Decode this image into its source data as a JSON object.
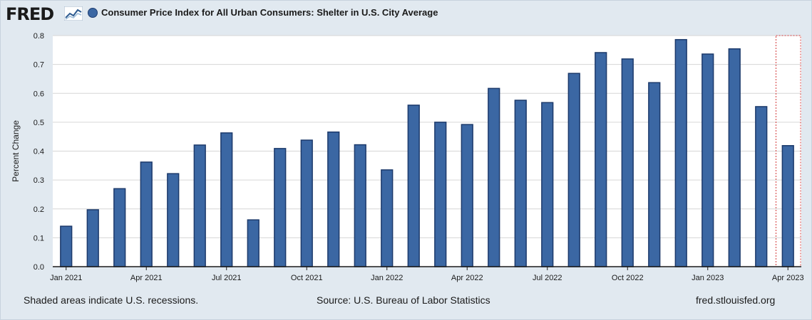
{
  "header": {
    "logo_text": "FRED",
    "legend_label": "Consumer Price Index for All Urban Consumers: Shelter in U.S. City Average",
    "series_color": "#3b67a3"
  },
  "chart_data": {
    "type": "bar",
    "title": "",
    "xlabel": "",
    "ylabel": "Percent Change",
    "ylim": [
      0,
      0.8
    ],
    "yticks": [
      "0.0",
      "0.1",
      "0.2",
      "0.3",
      "0.4",
      "0.5",
      "0.6",
      "0.7",
      "0.8"
    ],
    "grid": true,
    "legend_placement": "top-left",
    "categories": [
      "Jan 2021",
      "Feb 2021",
      "Mar 2021",
      "Apr 2021",
      "May 2021",
      "Jun 2021",
      "Jul 2021",
      "Aug 2021",
      "Sep 2021",
      "Oct 2021",
      "Nov 2021",
      "Dec 2021",
      "Jan 2022",
      "Feb 2022",
      "Mar 2022",
      "Apr 2022",
      "May 2022",
      "Jun 2022",
      "Jul 2022",
      "Aug 2022",
      "Sep 2022",
      "Oct 2022",
      "Nov 2022",
      "Dec 2022",
      "Jan 2023",
      "Feb 2023",
      "Mar 2023",
      "Apr 2023"
    ],
    "x_tick_labels": [
      {
        "index": 0,
        "label": "Jan 2021"
      },
      {
        "index": 3,
        "label": "Apr 2021"
      },
      {
        "index": 6,
        "label": "Jul 2021"
      },
      {
        "index": 9,
        "label": "Oct 2021"
      },
      {
        "index": 12,
        "label": "Jan 2022"
      },
      {
        "index": 15,
        "label": "Apr 2022"
      },
      {
        "index": 18,
        "label": "Jul 2022"
      },
      {
        "index": 21,
        "label": "Oct 2022"
      },
      {
        "index": 24,
        "label": "Jan 2023"
      },
      {
        "index": 27,
        "label": "Apr 2023"
      }
    ],
    "values": [
      0.14,
      0.197,
      0.27,
      0.362,
      0.322,
      0.421,
      0.463,
      0.162,
      0.409,
      0.438,
      0.466,
      0.422,
      0.335,
      0.559,
      0.5,
      0.492,
      0.617,
      0.576,
      0.568,
      0.669,
      0.741,
      0.719,
      0.637,
      0.786,
      0.736,
      0.754,
      0.554,
      0.419
    ],
    "highlight_last": true
  },
  "footer": {
    "left": "Shaded areas indicate U.S. recessions.",
    "center": "Source: U.S. Bureau of Labor Statistics",
    "right": "fred.stlouisfed.org"
  }
}
